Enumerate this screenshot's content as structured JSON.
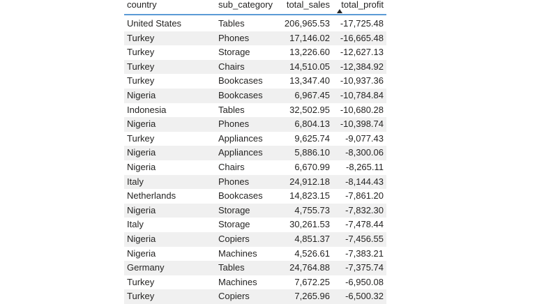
{
  "table": {
    "columns": [
      "country",
      "sub_category",
      "total_sales",
      "total_profit"
    ],
    "rows": [
      [
        "United States",
        "Tables",
        "206,965.53",
        "-17,725.48"
      ],
      [
        "Turkey",
        "Phones",
        "17,146.02",
        "-16,665.48"
      ],
      [
        "Turkey",
        "Storage",
        "13,226.60",
        "-12,627.13"
      ],
      [
        "Turkey",
        "Chairs",
        "14,510.05",
        "-12,384.92"
      ],
      [
        "Turkey",
        "Bookcases",
        "13,347.40",
        "-10,937.36"
      ],
      [
        "Nigeria",
        "Bookcases",
        "6,967.45",
        "-10,784.84"
      ],
      [
        "Indonesia",
        "Tables",
        "32,502.95",
        "-10,680.28"
      ],
      [
        "Nigeria",
        "Phones",
        "6,804.13",
        "-10,398.74"
      ],
      [
        "Turkey",
        "Appliances",
        "9,625.74",
        "-9,077.43"
      ],
      [
        "Nigeria",
        "Appliances",
        "5,886.10",
        "-8,300.06"
      ],
      [
        "Nigeria",
        "Chairs",
        "6,670.99",
        "-8,265.11"
      ],
      [
        "Italy",
        "Phones",
        "24,912.18",
        "-8,144.43"
      ],
      [
        "Netherlands",
        "Bookcases",
        "14,823.15",
        "-7,861.20"
      ],
      [
        "Nigeria",
        "Storage",
        "4,755.73",
        "-7,832.30"
      ],
      [
        "Italy",
        "Storage",
        "30,261.53",
        "-7,478.44"
      ],
      [
        "Nigeria",
        "Copiers",
        "4,851.37",
        "-7,456.55"
      ],
      [
        "Nigeria",
        "Machines",
        "4,526.61",
        "-7,383.21"
      ],
      [
        "Germany",
        "Tables",
        "24,764.88",
        "-7,375.74"
      ],
      [
        "Turkey",
        "Machines",
        "7,672.25",
        "-6,950.08"
      ],
      [
        "Turkey",
        "Copiers",
        "7,265.96",
        "-6,500.32"
      ]
    ],
    "sort": {
      "column": "total_profit",
      "direction": "ascending"
    }
  }
}
